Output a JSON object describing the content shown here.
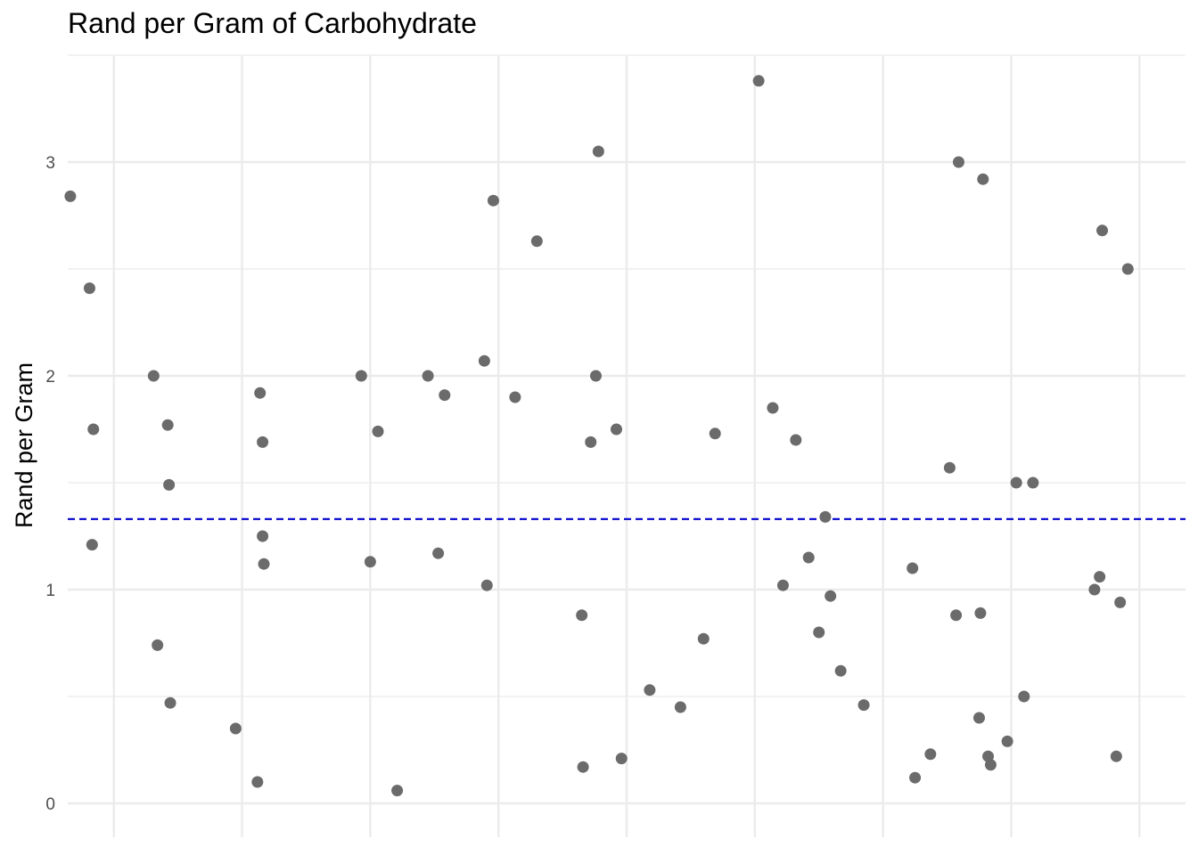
{
  "chart_data": {
    "type": "scatter",
    "title": "Rand per Gram of Carbohydrate",
    "xlabel": "",
    "ylabel": "Rand per Gram",
    "xlim": [
      0.64,
      9.36
    ],
    "ylim": [
      -0.1,
      3.5
    ],
    "y_ticks": [
      "0",
      "1",
      "2",
      "3"
    ],
    "x_tick_labels": [],
    "grid": true,
    "reference_line": {
      "y": 1.33,
      "style": "dashed",
      "color": "#0000cc"
    },
    "point_color": "#6b6b6b",
    "points": [
      {
        "x": 0.66,
        "y": 2.84
      },
      {
        "x": 0.81,
        "y": 2.41
      },
      {
        "x": 0.84,
        "y": 1.75
      },
      {
        "x": 0.83,
        "y": 1.21
      },
      {
        "x": 1.31,
        "y": 2.0
      },
      {
        "x": 1.34,
        "y": 0.74
      },
      {
        "x": 1.42,
        "y": 1.77
      },
      {
        "x": 1.43,
        "y": 1.49
      },
      {
        "x": 1.44,
        "y": 0.47
      },
      {
        "x": 1.95,
        "y": 0.35
      },
      {
        "x": 2.14,
        "y": 1.92
      },
      {
        "x": 2.16,
        "y": 1.69
      },
      {
        "x": 2.16,
        "y": 1.25
      },
      {
        "x": 2.17,
        "y": 1.12
      },
      {
        "x": 2.12,
        "y": 0.1
      },
      {
        "x": 2.93,
        "y": 2.0
      },
      {
        "x": 3.0,
        "y": 1.13
      },
      {
        "x": 3.06,
        "y": 1.74
      },
      {
        "x": 3.21,
        "y": 0.06
      },
      {
        "x": 3.45,
        "y": 2.0
      },
      {
        "x": 3.58,
        "y": 1.91
      },
      {
        "x": 3.53,
        "y": 1.17
      },
      {
        "x": 3.89,
        "y": 2.07
      },
      {
        "x": 3.91,
        "y": 1.02
      },
      {
        "x": 3.96,
        "y": 2.82
      },
      {
        "x": 4.13,
        "y": 1.9
      },
      {
        "x": 4.3,
        "y": 2.63
      },
      {
        "x": 4.65,
        "y": 0.88
      },
      {
        "x": 4.66,
        "y": 0.17
      },
      {
        "x": 4.72,
        "y": 1.69
      },
      {
        "x": 4.76,
        "y": 2.0
      },
      {
        "x": 4.78,
        "y": 3.05
      },
      {
        "x": 4.92,
        "y": 1.75
      },
      {
        "x": 4.96,
        "y": 0.21
      },
      {
        "x": 5.18,
        "y": 0.53
      },
      {
        "x": 5.42,
        "y": 0.45
      },
      {
        "x": 5.6,
        "y": 0.77
      },
      {
        "x": 5.69,
        "y": 1.73
      },
      {
        "x": 6.03,
        "y": 3.38
      },
      {
        "x": 6.14,
        "y": 1.85
      },
      {
        "x": 6.22,
        "y": 1.02
      },
      {
        "x": 6.32,
        "y": 1.7
      },
      {
        "x": 6.42,
        "y": 1.15
      },
      {
        "x": 6.5,
        "y": 0.8
      },
      {
        "x": 6.55,
        "y": 1.34
      },
      {
        "x": 6.59,
        "y": 0.97
      },
      {
        "x": 6.67,
        "y": 0.62
      },
      {
        "x": 6.85,
        "y": 0.46
      },
      {
        "x": 7.23,
        "y": 1.1
      },
      {
        "x": 7.25,
        "y": 0.12
      },
      {
        "x": 7.37,
        "y": 0.23
      },
      {
        "x": 7.52,
        "y": 1.57
      },
      {
        "x": 7.57,
        "y": 0.88
      },
      {
        "x": 7.59,
        "y": 3.0
      },
      {
        "x": 7.76,
        "y": 0.89
      },
      {
        "x": 7.75,
        "y": 0.4
      },
      {
        "x": 7.82,
        "y": 0.22
      },
      {
        "x": 7.84,
        "y": 0.18
      },
      {
        "x": 7.78,
        "y": 2.92
      },
      {
        "x": 7.97,
        "y": 0.29
      },
      {
        "x": 8.04,
        "y": 1.5
      },
      {
        "x": 8.1,
        "y": 0.5
      },
      {
        "x": 8.17,
        "y": 1.5
      },
      {
        "x": 8.65,
        "y": 1.0
      },
      {
        "x": 8.69,
        "y": 1.06
      },
      {
        "x": 8.71,
        "y": 2.68
      },
      {
        "x": 8.82,
        "y": 0.22
      },
      {
        "x": 8.85,
        "y": 0.94
      },
      {
        "x": 8.91,
        "y": 2.5
      }
    ]
  }
}
